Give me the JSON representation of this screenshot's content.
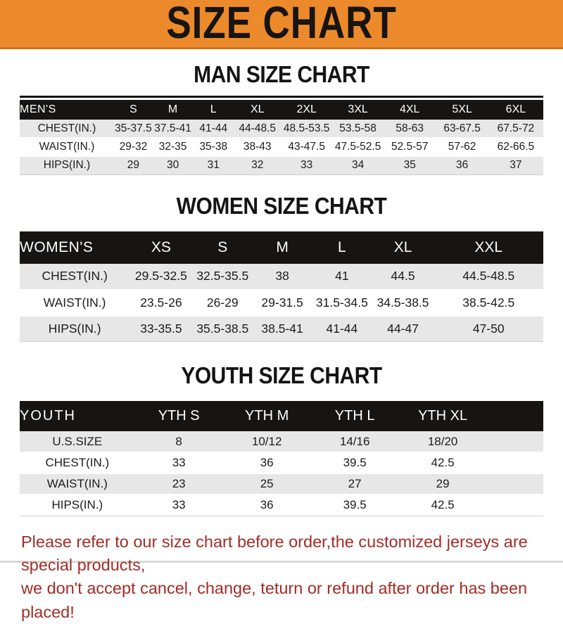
{
  "banner": {
    "title": "SIZE CHART"
  },
  "sections": [
    {
      "heading": "MAN SIZE CHART",
      "label": "MEN'S",
      "columns": [
        "S",
        "M",
        "L",
        "XL",
        "2XL",
        "3XL",
        "4XL",
        "5XL",
        "6XL"
      ],
      "rows": [
        {
          "label": "CHEST(IN.)",
          "values": [
            "35-37.5",
            "37.5-41",
            "41-44",
            "44-48.5",
            "48.5-53.5",
            "53.5-58",
            "58-63",
            "63-67.5",
            "67.5-72"
          ]
        },
        {
          "label": "WAIST(IN.)",
          "values": [
            "29-32",
            "32-35",
            "35-38",
            "38-43",
            "43-47.5",
            "47.5-52.5",
            "52.5-57",
            "57-62",
            "62-66.5"
          ]
        },
        {
          "label": "HIPS(IN.)",
          "values": [
            "29",
            "30",
            "31",
            "32",
            "33",
            "34",
            "35",
            "36",
            "37"
          ]
        }
      ]
    },
    {
      "heading": "WOMEN SIZE CHART",
      "label": "WOMEN'S",
      "columns": [
        "XS",
        "S",
        "M",
        "L",
        "XL",
        "XXL"
      ],
      "rows": [
        {
          "label": "CHEST(IN.)",
          "values": [
            "29.5-32.5",
            "32.5-35.5",
            "38",
            "41",
            "44.5",
            "44.5-48.5"
          ]
        },
        {
          "label": "WAIST(IN.)",
          "values": [
            "23.5-26",
            "26-29",
            "29-31.5",
            "31.5-34.5",
            "34.5-38.5",
            "38.5-42.5"
          ]
        },
        {
          "label": "HIPS(IN.)",
          "values": [
            "33-35.5",
            "35.5-38.5",
            "38.5-41",
            "41-44",
            "44-47",
            "47-50"
          ]
        }
      ]
    },
    {
      "heading": "YOUTH SIZE CHART",
      "label": "YOUTH",
      "columns": [
        "YTH S",
        "YTH M",
        "YTH L",
        "YTH XL"
      ],
      "rows": [
        {
          "label": "U.S.SIZE",
          "values": [
            "8",
            "10/12",
            "14/16",
            "18/20"
          ]
        },
        {
          "label": "CHEST(IN.)",
          "values": [
            "33",
            "36",
            "39.5",
            "42.5"
          ]
        },
        {
          "label": "WAIST(IN.)",
          "values": [
            "23",
            "25",
            "27",
            "29"
          ]
        },
        {
          "label": "HIPS(IN.)",
          "values": [
            "33",
            "36",
            "39.5",
            "42.5"
          ]
        }
      ]
    }
  ],
  "footer": {
    "line1": "Please refer to our size chart before order,the customized jerseys are special products,",
    "line2": "we don't accept cancel, change, teturn or refund after order has been placed!"
  },
  "colors": {
    "banner_orange": "#EC8A2B",
    "banner_border": "#C9731D",
    "bar_black": "#161514",
    "stripe_gray": "#E7E7E7",
    "text_black": "#1C1C1C",
    "notice_red": "#A32C26"
  }
}
